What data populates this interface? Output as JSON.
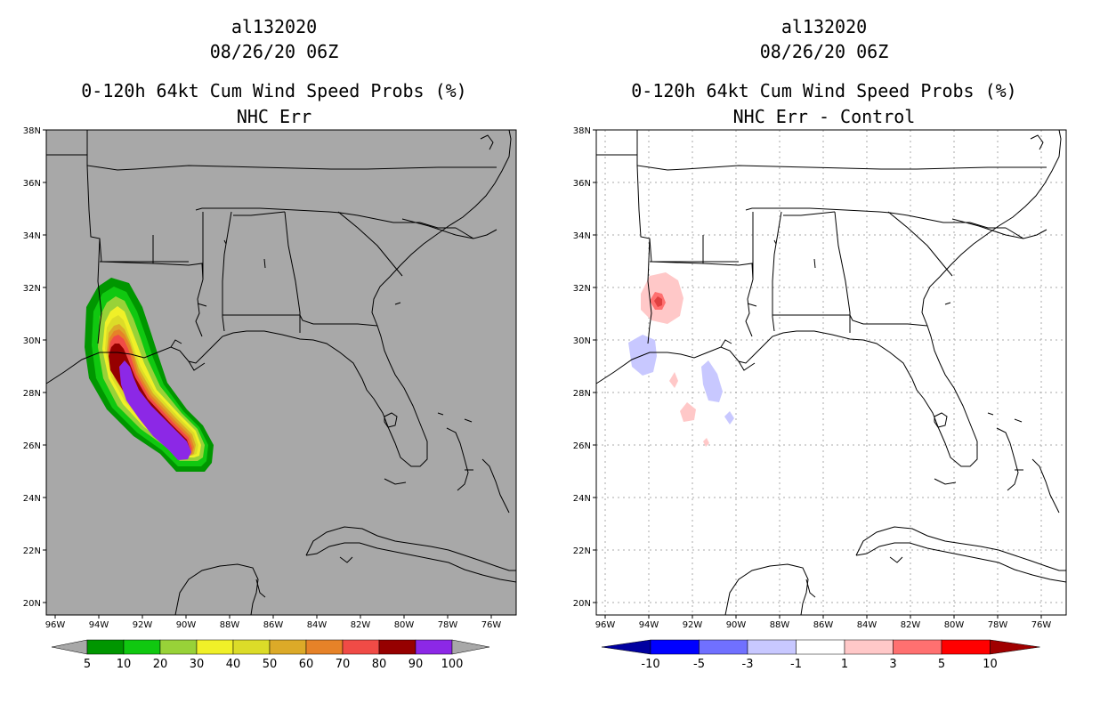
{
  "left": {
    "storm_id": "al132020",
    "datetime": "08/26/20 06Z",
    "product": "0-120h 64kt Cum Wind Speed Probs (%)",
    "subtitle": "NHC Err",
    "legend_labels": [
      "5",
      "10",
      "20",
      "30",
      "40",
      "50",
      "60",
      "70",
      "80",
      "90",
      "100"
    ],
    "legend_colors": [
      "#009600",
      "#10c810",
      "#98d238",
      "#f0f028",
      "#dcdc28",
      "#dcaa28",
      "#e68228",
      "#f04b46",
      "#960000",
      "#8c28e6"
    ]
  },
  "right": {
    "storm_id": "al132020",
    "datetime": "08/26/20 06Z",
    "product": "0-120h 64kt Cum Wind Speed Probs (%)",
    "subtitle": "NHC Err - Control",
    "legend_labels": [
      "-10",
      "-5",
      "-3",
      "-1",
      "1",
      "3",
      "5",
      "10"
    ],
    "legend_colors": [
      "#0000a0",
      "#0000ff",
      "#7070ff",
      "#c8c8ff",
      "#ffffff",
      "#ffc8c8",
      "#ff7070",
      "#ff0000",
      "#a00000"
    ]
  },
  "axes": {
    "lat_labels": [
      "38N",
      "36N",
      "34N",
      "32N",
      "30N",
      "28N",
      "26N",
      "24N",
      "22N",
      "20N"
    ],
    "lon_labels": [
      "96W",
      "94W",
      "92W",
      "90W",
      "88W",
      "86W",
      "84W",
      "82W",
      "80W",
      "78W",
      "76W"
    ]
  }
}
